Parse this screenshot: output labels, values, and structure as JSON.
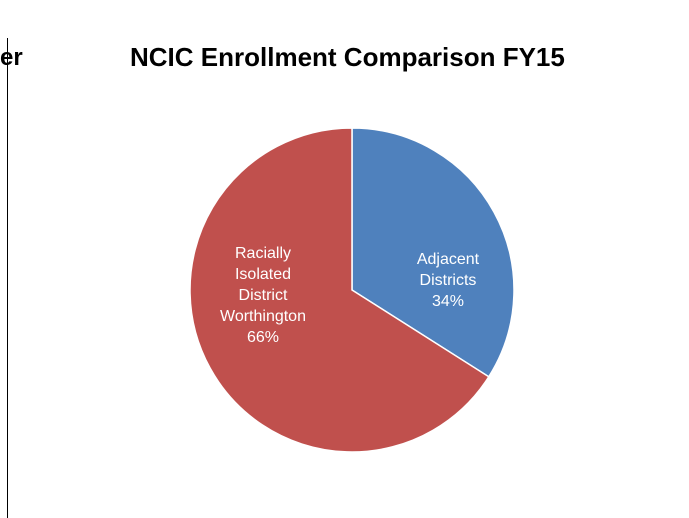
{
  "header": {
    "cut_text": "",
    "cut_link": "",
    "left_fragment": "er"
  },
  "chart_data": {
    "type": "pie",
    "title": "NCIC Enrollment Comparison FY15",
    "slices": [
      {
        "label_lines": [
          "Adjacent",
          "Districts",
          "34%"
        ],
        "value": 34,
        "color": "#4f81bd"
      },
      {
        "label_lines": [
          "Racially",
          "Isolated",
          "District",
          "Worthington",
          "66%"
        ],
        "value": 66,
        "color": "#c0504d"
      }
    ]
  }
}
